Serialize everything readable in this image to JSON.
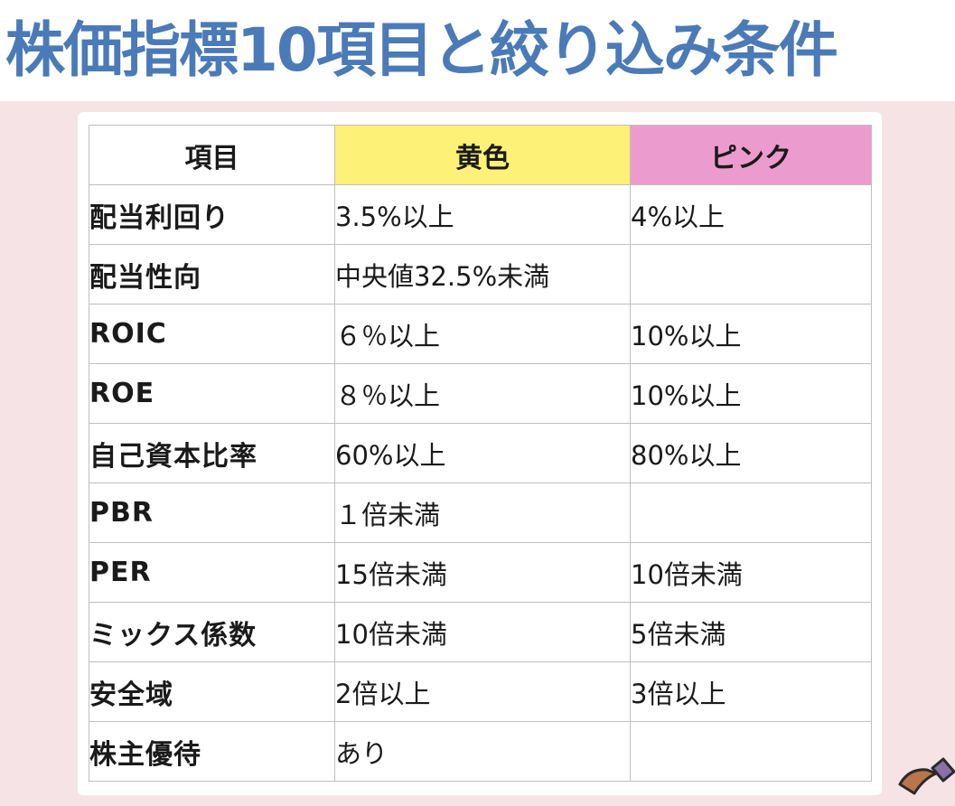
{
  "title": "株価指標10項目と絞り込み条件",
  "table": {
    "headers": {
      "item": "項目",
      "yellow": "黄色",
      "pink": "ピンク"
    },
    "header_colors": {
      "yellow": "#fdf177",
      "pink": "#ec9bcf"
    },
    "rows": [
      {
        "item": "配当利回り",
        "yellow": "3.5%以上",
        "pink": "4%以上"
      },
      {
        "item": "配当性向",
        "yellow": "中央値32.5%未満",
        "pink": ""
      },
      {
        "item": "ROIC",
        "yellow": " ６％以上",
        "pink": "10%以上"
      },
      {
        "item": "ROE",
        "yellow": " ８％以上",
        "pink": "10%以上"
      },
      {
        "item": "自己資本比率",
        "yellow": "60%以上",
        "pink": "80%以上"
      },
      {
        "item": "PBR",
        "yellow": " １倍未満",
        "pink": ""
      },
      {
        "item": "PER",
        "yellow": "15倍未満",
        "pink": "10倍未満"
      },
      {
        "item": "ミックス係数",
        "yellow": "10倍未満",
        "pink": "5倍未満"
      },
      {
        "item": "安全域",
        "yellow": "2倍以上",
        "pink": "3倍以上"
      },
      {
        "item": "株主優待",
        "yellow": "あり",
        "pink": ""
      }
    ]
  },
  "colors": {
    "title": "#4a7ab8",
    "background": "#f5e3e5",
    "grid": "#bfbfbf"
  },
  "decoration_icon": "hammer-illustration-icon"
}
